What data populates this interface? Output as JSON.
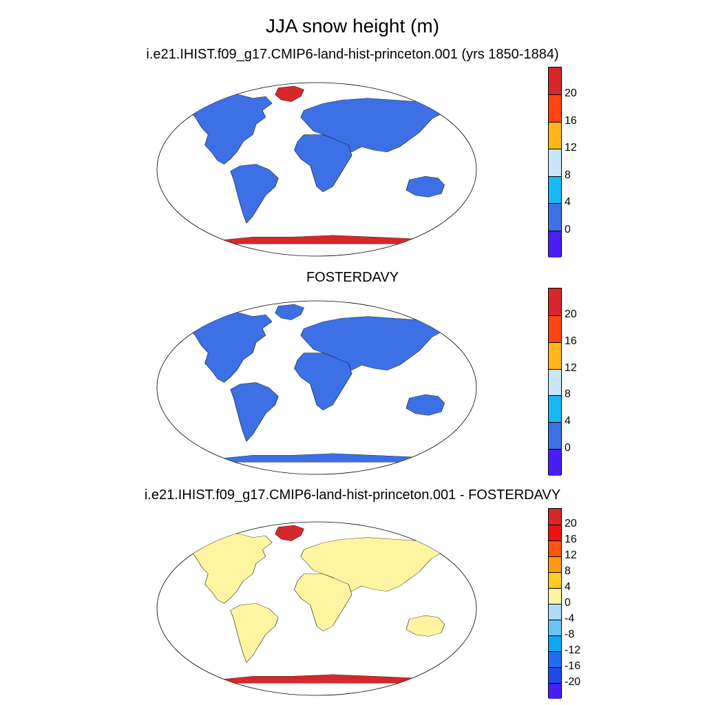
{
  "main_title": "JJA snow height (m)",
  "panels": [
    {
      "title": "i.e21.IHIST.f09_g17.CMIP6-land-hist-princeton.001 (yrs 1850-1884)",
      "land_color": "#3d70e4",
      "antarctica_color": "#d6282b",
      "greenland_color": "#d6282b",
      "colorbar": {
        "colors": [
          "#d6282b",
          "#ff4411",
          "#ffb719",
          "#c8e6f8",
          "#19b8f8",
          "#3d70e4",
          "#4a1df5"
        ],
        "labels": [
          "20",
          "16",
          "12",
          "8",
          "4",
          "0"
        ]
      }
    },
    {
      "title": "FOSTERDAVY",
      "land_color": "#3d70e4",
      "antarctica_color": "#3d70e4",
      "greenland_color": "#3d70e4",
      "colorbar": {
        "colors": [
          "#d6282b",
          "#ff4411",
          "#ffb719",
          "#c8e6f8",
          "#19b8f8",
          "#3d70e4",
          "#4a1df5"
        ],
        "labels": [
          "20",
          "16",
          "12",
          "8",
          "4",
          "0"
        ]
      }
    },
    {
      "title": "i.e21.IHIST.f09_g17.CMIP6-land-hist-princeton.001 - FOSTERDAVY",
      "land_color": "#fff5a0",
      "antarctica_color": "#d6282b",
      "greenland_color": "#d6282b",
      "colorbar": {
        "colors": [
          "#d6282b",
          "#ee1111",
          "#ff5511",
          "#ff9911",
          "#ffcc22",
          "#fff5a0",
          "#b0dcf4",
          "#6cc4f4",
          "#12a7f5",
          "#1f6ef2",
          "#2248e8",
          "#4a1df5"
        ],
        "labels": [
          "20",
          "16",
          "12",
          "8",
          "4",
          "0",
          "-4",
          "-8",
          "-12",
          "-16",
          "-20"
        ]
      }
    }
  ]
}
